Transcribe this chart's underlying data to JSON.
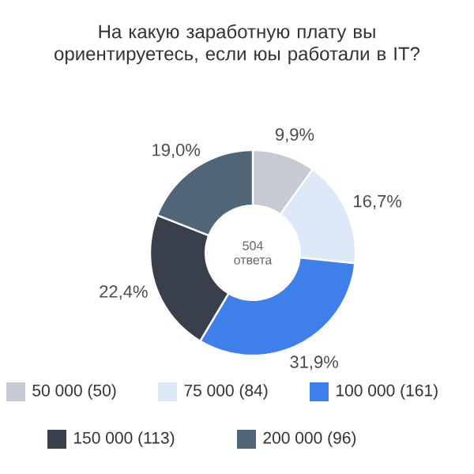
{
  "chart_data": {
    "type": "donut",
    "title": "На какую заработную плату вы ориентируетесь, если юы работали в IT?",
    "categories": [
      "50 000 (50)",
      "75 000 (84)",
      "100 000 (161)",
      "150 000 (113)",
      "200 000 (96)"
    ],
    "values": [
      9.9,
      16.7,
      31.9,
      22.4,
      19.0
    ],
    "value_labels": [
      "9,9%",
      "16,7%",
      "31,9%",
      "22,4%",
      "19,0%"
    ],
    "colors": [
      "#c6cbd3",
      "#dde9f8",
      "#3f7fe9",
      "#3a3f4c",
      "#506576"
    ],
    "annotations": [
      "504 ответа"
    ],
    "legend": "bottom"
  }
}
